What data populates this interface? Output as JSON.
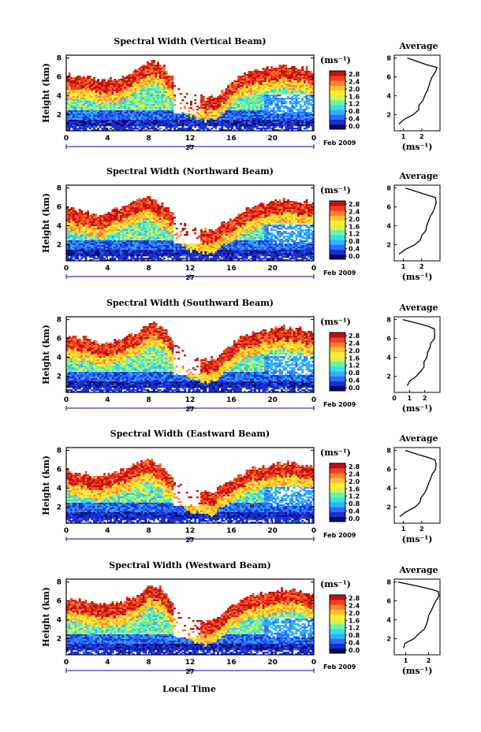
{
  "chart_data": {
    "type": "heatmap",
    "figure_xlabel": "Local Time",
    "date_label": "Feb 2009",
    "day_label": "27",
    "x_ticks": [
      "0",
      "4",
      "8",
      "12",
      "16",
      "20",
      "0"
    ],
    "y_ticks": [
      "8",
      "6",
      "4",
      "2"
    ],
    "ylabel": "Height (km)",
    "xlim": [
      0,
      24
    ],
    "ylim": [
      0.5,
      8
    ],
    "colorbar": {
      "unit": "(ms⁻¹)",
      "range": [
        0.0,
        3.0
      ],
      "colors": [
        "#0a0a6a",
        "#1a2fd0",
        "#2f6bff",
        "#2fb0ff",
        "#35e0e8",
        "#6ff0a8",
        "#d8f050",
        "#fff030",
        "#ffc030",
        "#ff8030",
        "#f04020",
        "#c01010"
      ]
    },
    "panels": [
      {
        "title": "Spectral Width (Vertical Beam)",
        "cbar_ticks": [
          "2.8",
          "2.4",
          "2.0",
          "1.6",
          "1.2",
          "0.8",
          "0.4",
          "0.0"
        ],
        "avg_title": "Average",
        "avg_xticks": [
          "1",
          "2"
        ],
        "avg_xlabel": "(ms⁻¹)",
        "avg_xlim": [
          0.5,
          3.0
        ],
        "avg_profile": {
          "height_km": [
            1.0,
            1.5,
            2.0,
            2.5,
            3.0,
            3.5,
            4.0,
            4.5,
            5.0,
            5.5,
            6.0,
            6.5,
            7.0,
            7.3,
            7.6,
            8.0
          ],
          "width_ms": [
            0.7,
            1.0,
            1.5,
            1.8,
            1.9,
            2.1,
            2.2,
            2.3,
            2.4,
            2.5,
            2.6,
            2.8,
            2.8,
            2.3,
            1.8,
            1.2
          ]
        }
      },
      {
        "title": "Spectral Width (Northward Beam)",
        "cbar_ticks": [
          "2.8",
          "2.4",
          "2.0",
          "1.6",
          "1.2",
          "0.8",
          "0.4",
          "0.0"
        ],
        "avg_title": "Average",
        "avg_xticks": [
          "1",
          "2"
        ],
        "avg_xlabel": "(ms⁻¹)",
        "avg_xlim": [
          0.5,
          3.0
        ],
        "avg_profile": {
          "height_km": [
            1.0,
            1.5,
            2.0,
            2.5,
            3.0,
            3.5,
            4.0,
            4.5,
            5.0,
            5.5,
            6.0,
            6.5,
            7.0,
            7.3,
            7.6,
            8.0
          ],
          "width_ms": [
            0.8,
            1.1,
            1.6,
            1.9,
            2.0,
            2.2,
            2.3,
            2.4,
            2.5,
            2.6,
            2.7,
            2.8,
            2.7,
            2.2,
            1.7,
            1.1
          ]
        }
      },
      {
        "title": "Spectral Width (Southward Beam)",
        "cbar_ticks": [
          "2.8",
          "2.4",
          "2.0",
          "1.6",
          "1.2",
          "0.8",
          "0.4",
          "0.0"
        ],
        "avg_title": "Average",
        "avg_xticks": [
          "0",
          "1",
          "2"
        ],
        "avg_xlabel": "(ms⁻¹)",
        "avg_xlim": [
          0.0,
          3.0
        ],
        "avg_profile": {
          "height_km": [
            1.0,
            1.5,
            2.0,
            2.5,
            3.0,
            3.5,
            4.0,
            4.5,
            5.0,
            5.5,
            6.0,
            6.5,
            7.0,
            7.3,
            7.6,
            8.0
          ],
          "width_ms": [
            0.9,
            1.0,
            1.4,
            1.7,
            1.9,
            2.0,
            2.1,
            2.2,
            2.3,
            2.4,
            2.6,
            2.7,
            2.7,
            2.2,
            1.5,
            0.6
          ]
        }
      },
      {
        "title": "Spectral Width (Eastward Beam)",
        "cbar_ticks": [
          "2.8",
          "2.4",
          "2.0",
          "1.6",
          "1.2",
          "0.8",
          "0.4",
          "0.0"
        ],
        "avg_title": "Average",
        "avg_xticks": [
          "1",
          "2"
        ],
        "avg_xlabel": "(ms⁻¹)",
        "avg_xlim": [
          0.5,
          3.0
        ],
        "avg_profile": {
          "height_km": [
            1.0,
            1.5,
            2.0,
            2.5,
            3.0,
            3.5,
            4.0,
            4.5,
            5.0,
            5.5,
            6.0,
            6.5,
            7.0,
            7.3,
            7.6,
            8.0
          ],
          "width_ms": [
            0.8,
            1.1,
            1.6,
            1.9,
            2.0,
            2.2,
            2.3,
            2.4,
            2.5,
            2.6,
            2.7,
            2.8,
            2.7,
            2.3,
            1.7,
            1.1
          ]
        }
      },
      {
        "title": "Spectral Width (Westward Beam)",
        "cbar_ticks": [
          "2.8",
          "2.4",
          "2.0",
          "1.6",
          "1.2",
          "0.8",
          "0.4",
          "0.0"
        ],
        "avg_title": "Average",
        "avg_xticks": [
          "1",
          "2"
        ],
        "avg_xlabel": "(ms⁻¹)",
        "avg_xlim": [
          0.5,
          2.5
        ],
        "avg_profile": {
          "height_km": [
            1.0,
            1.5,
            2.0,
            2.5,
            3.0,
            3.5,
            4.0,
            4.5,
            5.0,
            5.5,
            6.0,
            6.5,
            7.0,
            7.3,
            7.6,
            8.0
          ],
          "width_ms": [
            0.9,
            1.0,
            1.3,
            1.6,
            1.8,
            1.9,
            2.0,
            2.0,
            2.1,
            2.2,
            2.3,
            2.4,
            2.4,
            2.0,
            1.5,
            0.7
          ]
        }
      }
    ]
  }
}
